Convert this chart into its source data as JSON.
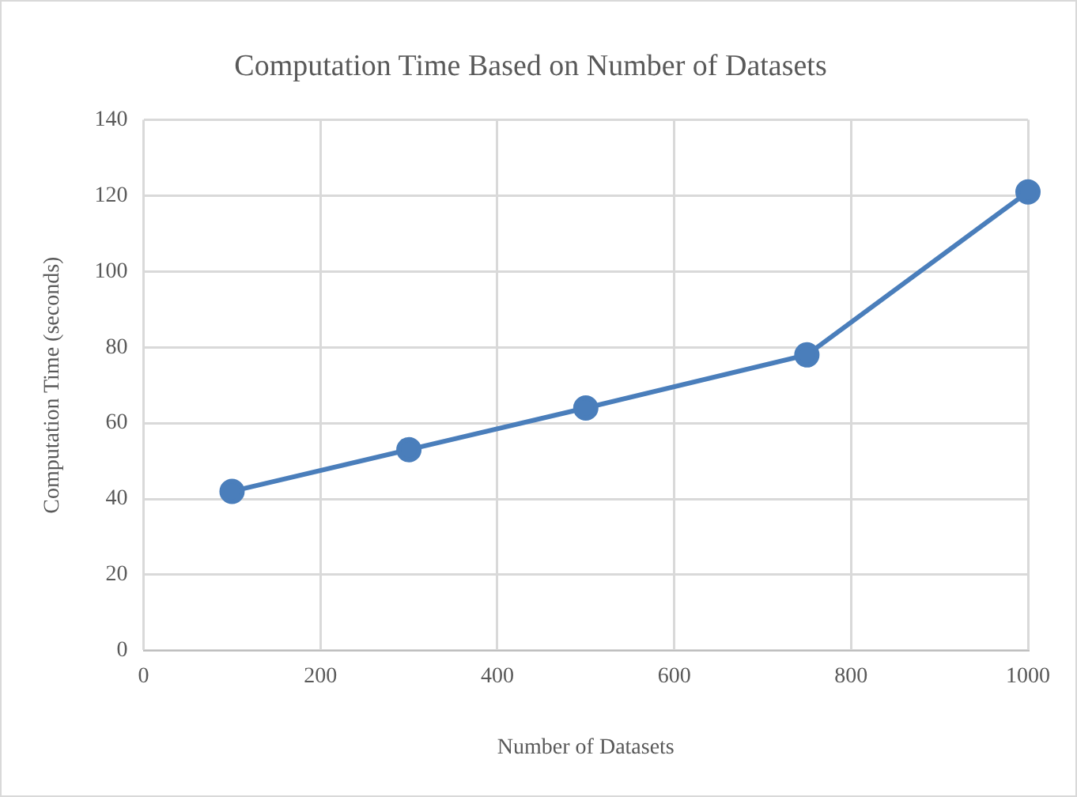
{
  "chart_data": {
    "type": "line",
    "title": "Computation Time Based on Number of Datasets",
    "xlabel": "Number of Datasets",
    "ylabel": "Computation Time (seconds)",
    "x": [
      100,
      300,
      500,
      750,
      1000
    ],
    "series": [
      {
        "color": "#4a7ebb",
        "values": [
          42,
          53,
          64,
          78,
          121
        ]
      }
    ],
    "xlim": [
      0,
      1000
    ],
    "xticks": [
      0,
      200,
      400,
      600,
      800,
      1000
    ],
    "ylim": [
      0,
      140
    ],
    "yticks": [
      0,
      20,
      40,
      60,
      80,
      100,
      120,
      140
    ],
    "grid": true,
    "marker": "circle",
    "line_style": "solid"
  }
}
